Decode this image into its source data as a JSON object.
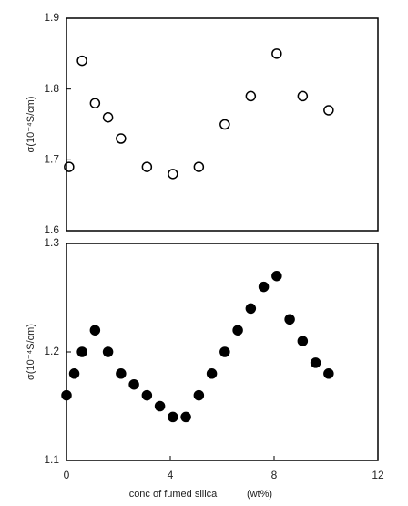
{
  "chart_data": [
    {
      "type": "scatter",
      "ylabel": "σ(10⁻⁴S/cm)",
      "marker": "open",
      "color": "#000000",
      "x": [
        0.1,
        0.6,
        1.1,
        1.6,
        2.1,
        3.1,
        4.1,
        5.1,
        6.1,
        7.1,
        8.1,
        9.1,
        10.1
      ],
      "values": [
        1.69,
        1.84,
        1.78,
        1.76,
        1.73,
        1.69,
        1.68,
        1.69,
        1.75,
        1.79,
        1.85,
        1.79,
        1.77
      ],
      "xlim": [
        0,
        12
      ],
      "ylim": [
        1.6,
        1.9
      ],
      "yticks": [
        1.6,
        1.7,
        1.8,
        1.9
      ]
    },
    {
      "type": "scatter",
      "ylabel": "σ(10⁻⁴S/cm)",
      "xlabel": "conc of fumed silica",
      "xunit": "(wt%)",
      "marker": "filled",
      "color": "#000000",
      "x": [
        0,
        0.3,
        0.6,
        1.1,
        1.6,
        2.1,
        2.6,
        3.1,
        3.6,
        4.1,
        4.6,
        5.1,
        5.6,
        6.1,
        6.6,
        7.1,
        7.6,
        8.1,
        8.6,
        9.1,
        9.6,
        10.1
      ],
      "values": [
        1.16,
        1.18,
        1.2,
        1.22,
        1.2,
        1.18,
        1.17,
        1.16,
        1.15,
        1.14,
        1.14,
        1.16,
        1.18,
        1.2,
        1.22,
        1.24,
        1.26,
        1.27,
        1.23,
        1.21,
        1.19,
        1.18
      ],
      "xlim": [
        0,
        12
      ],
      "xticks": [
        0,
        4,
        8,
        12
      ],
      "ylim": [
        1.1,
        1.3
      ],
      "yticks": [
        1.1,
        1.2,
        1.3
      ]
    }
  ]
}
